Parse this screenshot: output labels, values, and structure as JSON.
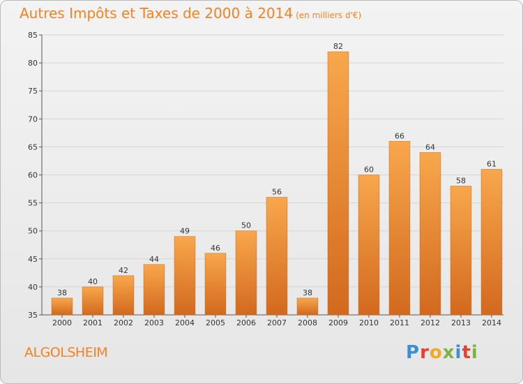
{
  "header": {
    "title": "Autres Impôts et Taxes de 2000 à 2014",
    "subtitle": "(en milliers d'€)"
  },
  "footer": {
    "commune": "ALGOLSHEIM",
    "logo_letters": [
      "P",
      "r",
      "o",
      "x",
      "i",
      "t",
      "i"
    ]
  },
  "chart_data": {
    "type": "bar",
    "title": "Autres Impôts et Taxes de 2000 à 2014",
    "subtitle": "(en milliers d'€)",
    "categories": [
      "2000",
      "2001",
      "2002",
      "2003",
      "2004",
      "2005",
      "2006",
      "2007",
      "2008",
      "2009",
      "2010",
      "2011",
      "2012",
      "2013",
      "2014"
    ],
    "values": [
      38,
      40,
      42,
      44,
      49,
      46,
      50,
      56,
      38,
      82,
      60,
      66,
      64,
      58,
      61
    ],
    "ylim": [
      35,
      85
    ],
    "yticks": [
      35,
      40,
      45,
      50,
      55,
      60,
      65,
      70,
      75,
      80,
      85
    ],
    "grid": true,
    "bar_color_top": "#f8a74c",
    "bar_color_bottom": "#d2691e",
    "bar_border": "#c56a1c"
  }
}
